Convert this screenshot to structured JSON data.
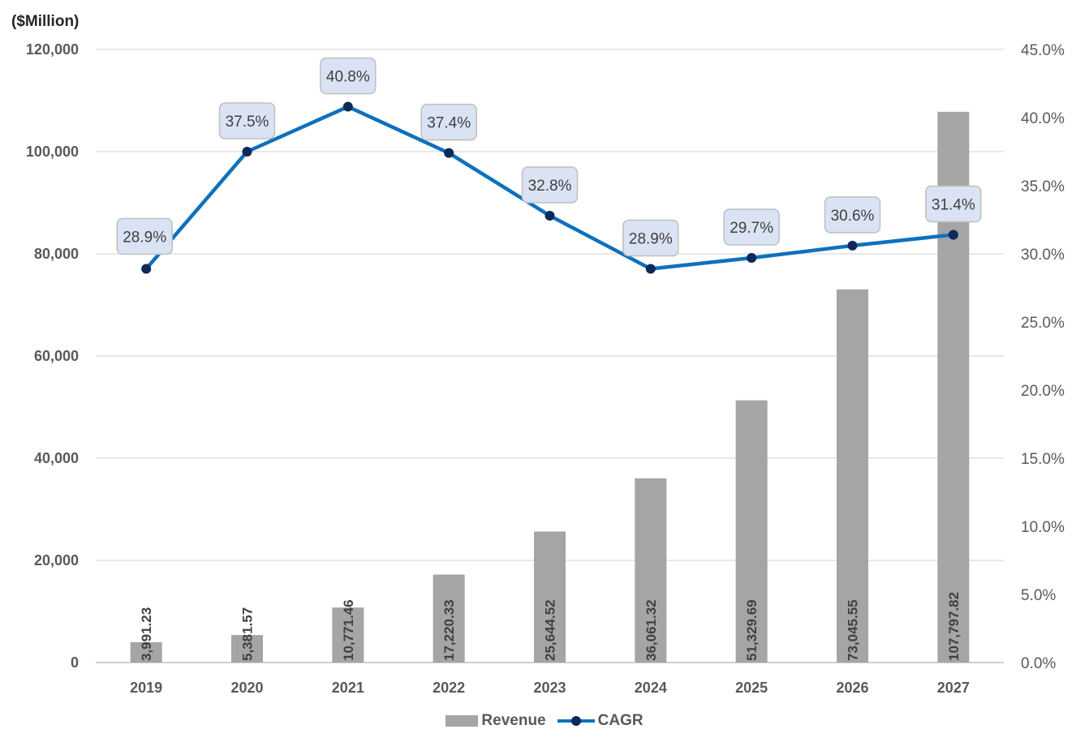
{
  "chart_data": {
    "type": "bar",
    "unit_label": "($Million)",
    "categories": [
      "2019",
      "2020",
      "2021",
      "2022",
      "2023",
      "2024",
      "2025",
      "2026",
      "2027"
    ],
    "series": [
      {
        "name": "Revenue",
        "type": "bar",
        "axis": "left",
        "color": "#a5a5a5",
        "values": [
          3991.23,
          5381.57,
          10771.46,
          17220.33,
          25644.52,
          36061.32,
          51329.69,
          73045.55,
          107797.82
        ],
        "labels": [
          "3,991.23",
          "5,381.57",
          "10,771.46",
          "17,220.33",
          "25,644.52",
          "36,061.32",
          "51,329.69",
          "73,045.55",
          "107,797.82"
        ]
      },
      {
        "name": "CAGR",
        "type": "line",
        "axis": "right",
        "color": "#0f70bd",
        "marker_color": "#0b2a5b",
        "values": [
          28.9,
          37.5,
          40.8,
          37.4,
          32.8,
          28.9,
          29.7,
          30.6,
          31.4
        ],
        "labels": [
          "28.9%",
          "37.5%",
          "40.8%",
          "37.4%",
          "32.8%",
          "28.9%",
          "29.7%",
          "30.6%",
          "31.4%"
        ]
      }
    ],
    "y_left": {
      "min": 0,
      "max": 120000,
      "ticks": [
        0,
        20000,
        40000,
        60000,
        80000,
        100000,
        120000
      ],
      "tick_labels": [
        "0",
        "20,000",
        "40,000",
        "60,000",
        "80,000",
        "100,000",
        "120,000"
      ]
    },
    "y_right": {
      "min": 0,
      "max": 45,
      "ticks": [
        0,
        5,
        10,
        15,
        20,
        25,
        30,
        35,
        40,
        45
      ],
      "tick_labels": [
        "0.0%",
        "5.0%",
        "10.0%",
        "15.0%",
        "20.0%",
        "25.0%",
        "30.0%",
        "35.0%",
        "40.0%",
        "45.0%"
      ]
    },
    "grid": true,
    "legend_position": "bottom"
  }
}
